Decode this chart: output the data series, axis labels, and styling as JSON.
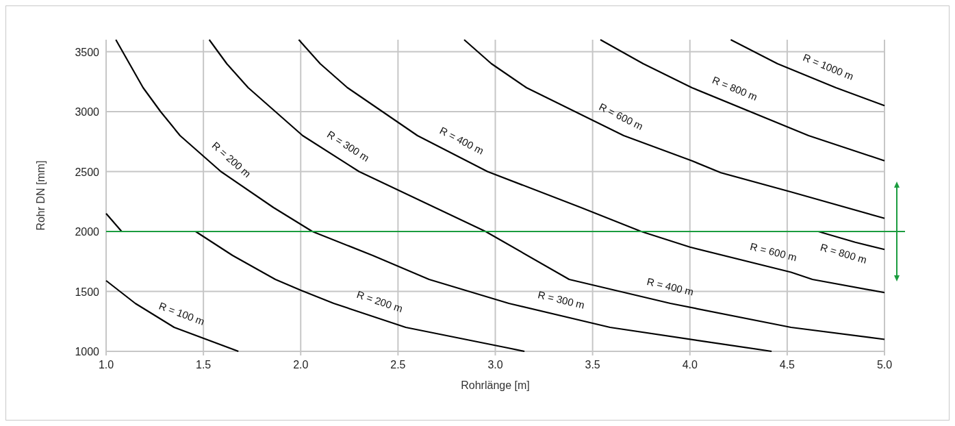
{
  "chart_data": {
    "type": "line",
    "xlabel": "Rohrlänge [m]",
    "ylabel": "Rohr DN [mm]",
    "xlim": [
      1.0,
      5.0
    ],
    "ylim": [
      1000,
      3600
    ],
    "xticks": [
      {
        "value": 1.0,
        "label": "1.0"
      },
      {
        "value": 1.5,
        "label": "1.5"
      },
      {
        "value": 2.0,
        "label": "2.0"
      },
      {
        "value": 2.5,
        "label": "2.5"
      },
      {
        "value": 3.0,
        "label": "3.0"
      },
      {
        "value": 3.5,
        "label": "3.5"
      },
      {
        "value": 4.0,
        "label": "4.0"
      },
      {
        "value": 4.5,
        "label": "4.5"
      },
      {
        "value": 5.0,
        "label": "5.0"
      }
    ],
    "yticks": [
      1000,
      1500,
      2000,
      2500,
      3000,
      3500
    ],
    "grid": true,
    "marker": "none",
    "line_style": "solid",
    "series": [
      {
        "color": "#000000",
        "x": [
          1.0,
          1.08
        ],
        "values": [
          2150,
          2000
        ]
      },
      {
        "color": "#000000",
        "x": [
          1.0,
          1.15,
          1.35,
          1.68
        ],
        "values": [
          1590,
          1400,
          1200,
          1000
        ]
      },
      {
        "color": "#000000",
        "x": [
          1.46,
          1.65,
          1.87,
          2.0,
          2.17,
          2.54,
          3.06,
          3.15
        ],
        "values": [
          2000,
          1800,
          1600,
          1510,
          1400,
          1200,
          1030,
          1000
        ]
      },
      {
        "color": "#000000",
        "x": [
          1.05,
          1.12,
          1.19,
          1.28,
          1.38,
          1.59,
          1.86,
          2.06,
          2.37,
          2.66,
          3.07,
          3.59,
          4.42
        ],
        "values": [
          3600,
          3400,
          3200,
          3000,
          2800,
          2500,
          2200,
          2000,
          1800,
          1600,
          1400,
          1200,
          1000
        ]
      },
      {
        "color": "#000000",
        "x": [
          1.53,
          1.62,
          1.73,
          2.01,
          2.3,
          2.69,
          2.95,
          3.38,
          3.9,
          4.52,
          5.0
        ],
        "values": [
          3600,
          3400,
          3200,
          2800,
          2500,
          2200,
          2000,
          1600,
          1400,
          1200,
          1100
        ]
      },
      {
        "color": "#000000",
        "x": [
          1.99,
          2.1,
          2.24,
          2.6,
          2.96,
          3.44,
          3.75,
          4.0,
          4.52,
          4.63,
          5.0
        ],
        "values": [
          3600,
          3400,
          3200,
          2800,
          2500,
          2200,
          2000,
          1870,
          1660,
          1600,
          1490
        ]
      },
      {
        "color": "#000000",
        "x": [
          2.84,
          2.98,
          3.16,
          3.66,
          4.01,
          4.16,
          4.52,
          5.0
        ],
        "values": [
          3600,
          3400,
          3200,
          2800,
          2590,
          2490,
          2330,
          2110
        ]
      },
      {
        "color": "#000000",
        "x": [
          4.66,
          4.85,
          5.0
        ],
        "values": [
          2000,
          1910,
          1850
        ]
      },
      {
        "color": "#000000",
        "x": [
          3.54,
          3.76,
          4.01,
          4.61,
          5.0
        ],
        "values": [
          3600,
          3400,
          3200,
          2800,
          2590
        ]
      },
      {
        "color": "#000000",
        "x": [
          4.21,
          4.45,
          4.75,
          5.0
        ],
        "values": [
          3600,
          3400,
          3200,
          3050
        ]
      }
    ],
    "ref_lines": [
      {
        "axis": "y",
        "value": 2000,
        "color": "#1a9c3e"
      }
    ],
    "annotations": [
      {
        "text": "R = 200 m",
        "x": 1.59,
        "y": 2500
      },
      {
        "text": "R = 300 m",
        "x": 2.2,
        "y": 2600
      },
      {
        "text": "R = 400 m",
        "x": 2.79,
        "y": 2640
      },
      {
        "text": "R = 600 m",
        "x": 3.61,
        "y": 2840
      },
      {
        "text": "R = 800 m",
        "x": 4.2,
        "y": 3070
      },
      {
        "text": "R = 1000 m",
        "x": 4.68,
        "y": 3250
      },
      {
        "text": "R = 100 m",
        "x": 1.36,
        "y": 1190
      },
      {
        "text": "R = 200 m",
        "x": 2.38,
        "y": 1290
      },
      {
        "text": "R = 300 m",
        "x": 3.32,
        "y": 1300
      },
      {
        "text": "R = 400 m",
        "x": 3.88,
        "y": 1410
      },
      {
        "text": "R = 600 m",
        "x": 4.41,
        "y": 1700
      },
      {
        "text": "R = 800 m",
        "x": 4.81,
        "y": 1930
      }
    ]
  }
}
